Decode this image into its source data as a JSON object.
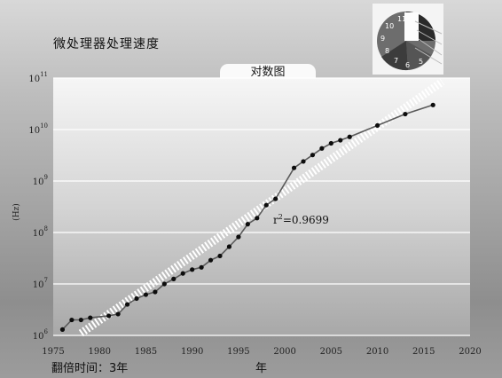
{
  "slide": {
    "title": "微处理器处理速度",
    "footer_note": "翻倍时间：3年",
    "footer_year": "年"
  },
  "logo": {
    "icon": "clock-icon",
    "numerals": [
      "11",
      "10",
      "9",
      "8",
      "7",
      "6",
      "5"
    ]
  },
  "chart_data": {
    "type": "scatter",
    "title": "对数图",
    "xlabel": "",
    "ylabel": "(Hz)",
    "xlim": [
      1975,
      2020
    ],
    "ylim_log10": [
      6,
      11
    ],
    "yscale": "log",
    "xticks": [
      "1975",
      "1980",
      "1985",
      "1990",
      "1995",
      "2000",
      "2005",
      "2010",
      "2015",
      "2020"
    ],
    "yticks": [
      {
        "base": "10",
        "exp": "6"
      },
      {
        "base": "10",
        "exp": "7"
      },
      {
        "base": "10",
        "exp": "8"
      },
      {
        "base": "10",
        "exp": "9"
      },
      {
        "base": "10",
        "exp": "10"
      },
      {
        "base": "10",
        "exp": "11"
      }
    ],
    "grid": true,
    "annotation": {
      "prefix": "r",
      "sup": "2",
      "suffix": "=0.9699"
    },
    "series": [
      {
        "type": "line-with-markers",
        "x": [
          1976,
          1977,
          1978,
          1979,
          1981,
          1982,
          1983,
          1984,
          1985,
          1986,
          1987,
          1988,
          1989,
          1990,
          1991,
          1992,
          1993,
          1994,
          1995,
          1996,
          1997,
          1998,
          1999,
          2001,
          2002,
          2003,
          2004,
          2005,
          2006,
          2007,
          2010,
          2013,
          2016
        ],
        "y": [
          1300000.0,
          2000000.0,
          2000000.0,
          2200000.0,
          2400000.0,
          2600000.0,
          4000000.0,
          5200000.0,
          6200000.0,
          7000000.0,
          10000000.0,
          12500000.0,
          16000000.0,
          19000000.0,
          21000000.0,
          29000000.0,
          35000000.0,
          53000000.0,
          82000000.0,
          145000000.0,
          190000000.0,
          340000000.0,
          450000000.0,
          1800000000.0,
          2400000000.0,
          3200000000.0,
          4300000000.0,
          5400000000.0,
          6200000000.0,
          7200000000.0,
          12000000000.0,
          20000000000.0,
          30000000000.0
        ]
      },
      {
        "type": "trend",
        "x": [
          1978,
          2017
        ],
        "y": [
          1100000.0,
          85000000000.0
        ]
      }
    ],
    "colors": {
      "line": "#5a5a5a",
      "marker": "#0d0d0d",
      "trend": "#ffffff",
      "grid": "#ffffff"
    }
  }
}
